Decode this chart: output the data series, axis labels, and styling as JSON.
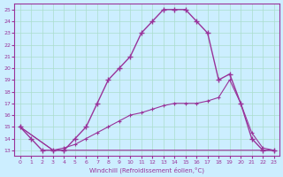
{
  "xlabel": "Windchill (Refroidissement éolien,°C)",
  "background_color": "#cceeff",
  "grid_color": "#aaddcc",
  "line_color": "#993399",
  "xlim": [
    -0.5,
    23.5
  ],
  "ylim": [
    12.5,
    25.5
  ],
  "xticks": [
    0,
    1,
    2,
    3,
    4,
    5,
    6,
    7,
    8,
    9,
    10,
    11,
    12,
    13,
    14,
    15,
    16,
    17,
    18,
    19,
    20,
    21,
    22,
    23
  ],
  "yticks": [
    13,
    14,
    15,
    16,
    17,
    18,
    19,
    20,
    21,
    22,
    23,
    24,
    25
  ],
  "line1_x": [
    0,
    1,
    2,
    3,
    4,
    5,
    6,
    7,
    8,
    9,
    10,
    11,
    12,
    13,
    14,
    15,
    16,
    17,
    18,
    19,
    20,
    21,
    22,
    23
  ],
  "line1_y": [
    15,
    14,
    13,
    13,
    13,
    14,
    15,
    17,
    19,
    20,
    21,
    23,
    24,
    25,
    25,
    25,
    24,
    23,
    19,
    19.5,
    17,
    14,
    13,
    13
  ],
  "line2_x": [
    0,
    3,
    4,
    23
  ],
  "line2_y": [
    15,
    13,
    13,
    13
  ],
  "line3_x": [
    0,
    3,
    4,
    5,
    6,
    7,
    8,
    9,
    10,
    11,
    12,
    13,
    14,
    15,
    16,
    17,
    18,
    19,
    20,
    21,
    22,
    23
  ],
  "line3_y": [
    15,
    13,
    13.2,
    13.5,
    14,
    14.5,
    15,
    15.5,
    16,
    16.2,
    16.5,
    16.8,
    17,
    17,
    17,
    17.2,
    17.5,
    19,
    17,
    14.5,
    13.2,
    13
  ]
}
